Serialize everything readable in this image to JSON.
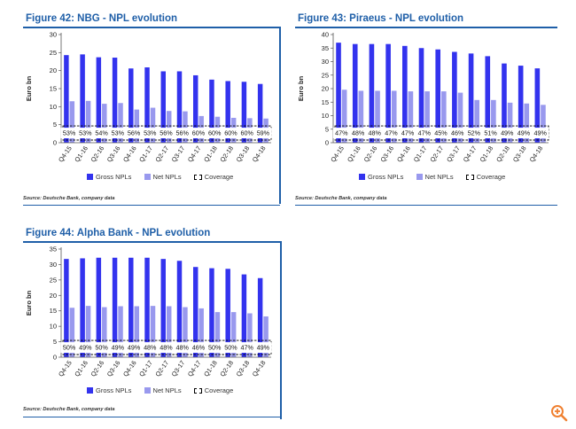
{
  "colors": {
    "gross": "#3333ee",
    "net": "#9999ee",
    "accent": "#1f5fa8"
  },
  "icons": {
    "zoom": "zoom-in-icon"
  },
  "legend": {
    "gross": "Gross NPLs",
    "net": "Net NPLs",
    "coverage": "Coverage"
  },
  "ylabel": "Euro bn",
  "source": "Source: Deutsche Bank, company data",
  "chart_data": [
    {
      "type": "bar",
      "title": "Figure 42: NBG - NPL evolution",
      "categories": [
        "Q4-15",
        "Q1-16",
        "Q2-16",
        "Q3-16",
        "Q4-16",
        "Q1-17",
        "Q2-17",
        "Q3-17",
        "Q4-17",
        "Q1-18",
        "Q2-18",
        "Q3-18",
        "Q4-18"
      ],
      "series": [
        {
          "name": "Gross NPLs",
          "values": [
            24.3,
            24.5,
            23.7,
            23.6,
            20.6,
            20.9,
            19.8,
            19.8,
            18.7,
            17.5,
            17.1,
            16.9,
            16.3
          ]
        },
        {
          "name": "Net NPLs",
          "values": [
            11.5,
            11.6,
            10.8,
            11.0,
            9.2,
            9.7,
            8.8,
            8.7,
            7.4,
            7.2,
            6.9,
            6.8,
            6.7
          ]
        },
        {
          "name": "Coverage",
          "values": [
            "53%",
            "53%",
            "54%",
            "53%",
            "56%",
            "53%",
            "56%",
            "56%",
            "60%",
            "60%",
            "60%",
            "60%",
            "59%"
          ]
        }
      ],
      "ylabel": "Euro bn",
      "ylim": [
        0,
        30
      ],
      "yticks": [
        0,
        5,
        10,
        15,
        20,
        25,
        30
      ]
    },
    {
      "type": "bar",
      "title": "Figure 43: Piraeus - NPL evolution",
      "categories": [
        "Q4-15",
        "Q1-16",
        "Q2-16",
        "Q3-16",
        "Q4-16",
        "Q1-17",
        "Q2-17",
        "Q3-17",
        "Q4-17",
        "Q1-18",
        "Q2-18",
        "Q3-18",
        "Q4-18"
      ],
      "series": [
        {
          "name": "Gross NPLs",
          "values": [
            37.0,
            36.5,
            36.5,
            36.5,
            35.8,
            35.0,
            34.5,
            33.6,
            33.0,
            32.0,
            29.3,
            28.5,
            27.5
          ]
        },
        {
          "name": "Net NPLs",
          "values": [
            19.6,
            19.2,
            19.2,
            19.2,
            19.0,
            19.0,
            19.0,
            18.5,
            15.8,
            15.8,
            14.8,
            14.5,
            14.0
          ]
        },
        {
          "name": "Coverage",
          "values": [
            "47%",
            "48%",
            "48%",
            "47%",
            "47%",
            "47%",
            "45%",
            "46%",
            "52%",
            "51%",
            "49%",
            "49%",
            "49%"
          ]
        }
      ],
      "ylabel": "Euro bn",
      "ylim": [
        0,
        40
      ],
      "yticks": [
        0,
        5,
        10,
        15,
        20,
        25,
        30,
        35,
        40
      ]
    },
    {
      "type": "bar",
      "title": "Figure 44: Alpha Bank - NPL evolution",
      "categories": [
        "Q4-15",
        "Q1-16",
        "Q2-16",
        "Q3-16",
        "Q4-16",
        "Q1-17",
        "Q2-17",
        "Q3-17",
        "Q4-17",
        "Q1-18",
        "Q2-18",
        "Q3-18",
        "Q4-18"
      ],
      "series": [
        {
          "name": "Gross NPLs",
          "values": [
            31.8,
            32.0,
            32.2,
            32.2,
            32.2,
            32.2,
            31.8,
            31.2,
            29.2,
            28.8,
            28.6,
            26.8,
            25.6
          ]
        },
        {
          "name": "Net NPLs",
          "values": [
            16.0,
            16.6,
            16.2,
            16.5,
            16.5,
            16.6,
            16.5,
            16.2,
            15.8,
            14.6,
            14.6,
            14.2,
            13.2
          ]
        },
        {
          "name": "Coverage",
          "values": [
            "50%",
            "49%",
            "50%",
            "49%",
            "49%",
            "48%",
            "48%",
            "48%",
            "46%",
            "50%",
            "50%",
            "47%",
            "49%"
          ]
        }
      ],
      "ylabel": "Euro bn",
      "ylim": [
        0,
        35
      ],
      "yticks": [
        0,
        5,
        10,
        15,
        20,
        25,
        30,
        35
      ]
    }
  ]
}
